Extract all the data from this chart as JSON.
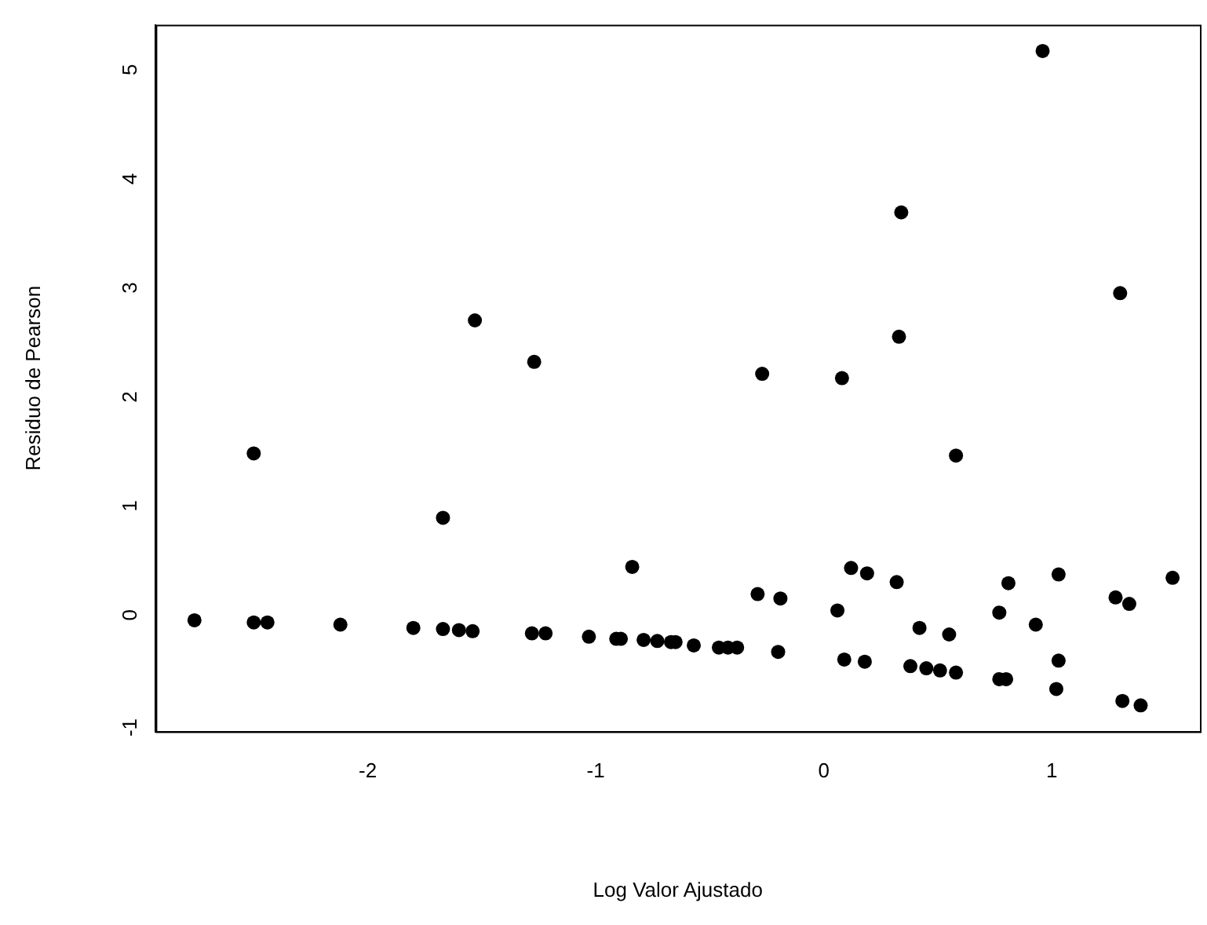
{
  "chart_data": {
    "type": "scatter",
    "xlabel": "Log Valor Ajustado",
    "ylabel": "Residuo de Pearson",
    "marker": "circle",
    "grid": false,
    "legend": false,
    "xlim": [
      -2.93,
      1.65
    ],
    "ylim": [
      -1.12,
      5.36
    ],
    "xticks": [
      -2,
      -1,
      0,
      1
    ],
    "yticks": [
      -1,
      0,
      1,
      2,
      3,
      4,
      5
    ],
    "series": [
      {
        "color": "#000000",
        "x": [
          -2.76,
          -2.5,
          -2.5,
          -2.44,
          -2.12,
          -1.8,
          -1.67,
          -1.67,
          -1.6,
          -1.54,
          -1.28,
          -1.22,
          -1.03,
          -0.91,
          -0.89,
          -0.84,
          -0.79,
          -0.73,
          -0.67,
          -0.65,
          -0.57,
          -0.46,
          -0.42,
          -0.38,
          -0.29,
          -0.2,
          -0.19,
          0.06,
          0.09,
          0.18,
          0.12,
          0.19,
          0.32,
          0.38,
          0.45,
          0.51,
          0.58,
          0.42,
          0.55,
          0.58,
          0.77,
          0.77,
          0.8,
          0.81,
          0.93,
          1.02,
          1.03,
          1.03,
          1.28,
          1.31,
          1.39,
          1.34,
          1.53,
          -1.53,
          -1.27,
          -0.27,
          0.08,
          0.33,
          0.34,
          0.96,
          1.3
        ],
        "values": [
          -0.1,
          1.43,
          -0.12,
          -0.12,
          -0.14,
          -0.17,
          0.84,
          -0.18,
          -0.19,
          -0.2,
          -0.22,
          -0.22,
          -0.25,
          -0.27,
          -0.27,
          0.39,
          -0.28,
          -0.29,
          -0.3,
          -0.3,
          -0.33,
          -0.35,
          -0.35,
          -0.35,
          0.14,
          -0.39,
          0.1,
          -0.01,
          -0.46,
          -0.48,
          0.38,
          0.33,
          0.25,
          -0.52,
          -0.54,
          -0.56,
          -0.58,
          -0.17,
          -0.23,
          1.41,
          -0.03,
          -0.64,
          -0.64,
          0.24,
          -0.14,
          -0.73,
          0.32,
          -0.47,
          0.11,
          -0.84,
          -0.88,
          0.05,
          0.29,
          2.65,
          2.27,
          2.16,
          2.12,
          2.5,
          3.64,
          5.12,
          2.9
        ]
      }
    ]
  }
}
